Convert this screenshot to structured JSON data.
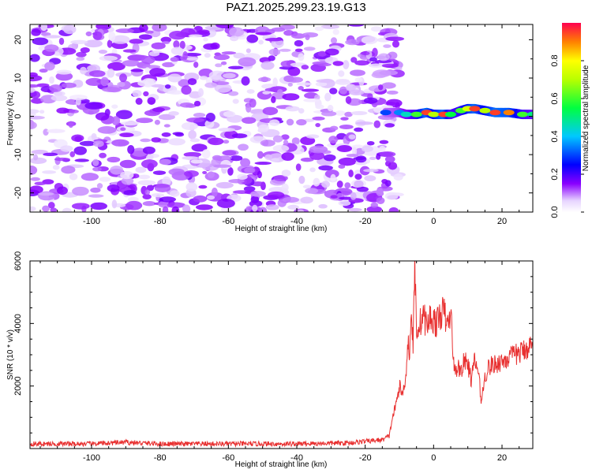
{
  "title": "PAZ1.2025.299.23.19.G13",
  "colors": {
    "snr_line": "#e83030",
    "spec_blob_dark": "#7a00ff",
    "spec_blob_light": "#d8b8ff"
  },
  "chart_data": [
    {
      "type": "heatmap",
      "name": "spectrogram",
      "xlabel": "Height of straight line (km)",
      "ylabel": "Frequency (Hz)",
      "xlim": [
        -118,
        29
      ],
      "ylim": [
        -25,
        24
      ],
      "xticks": [
        -100,
        -80,
        -60,
        -40,
        -20,
        0,
        20
      ],
      "yticks": [
        -20,
        -10,
        0,
        10,
        20
      ],
      "xtick_labels": [
        "-100",
        "-80",
        "-60",
        "-40",
        "-20",
        "0",
        "20"
      ],
      "ytick_labels": [
        "-20",
        "-10",
        "0",
        "10",
        "20"
      ],
      "colorbar": {
        "label": "Normalized spectral amplitude",
        "range": [
          0,
          1
        ],
        "ticks": [
          0.0,
          0.2,
          0.4,
          0.6,
          0.8
        ],
        "tick_labels": [
          "0.0",
          "0.2",
          "0.4",
          "0.6",
          "0.8"
        ]
      },
      "noise_region_x": [
        -118,
        -10
      ],
      "signal_trace": {
        "x": [
          -14,
          -10,
          -8,
          -5,
          -2,
          0,
          3,
          5,
          8,
          10,
          12,
          15,
          18,
          22,
          26,
          29
        ],
        "frequency": [
          1,
          1,
          0.5,
          0.5,
          1,
          0.5,
          0.5,
          0.5,
          1.5,
          2,
          2,
          1.5,
          1,
          1,
          0.5,
          0.5
        ],
        "amplitude": [
          0.3,
          0.35,
          0.45,
          0.6,
          0.95,
          0.7,
          0.95,
          0.55,
          0.6,
          0.75,
          0.95,
          0.7,
          0.95,
          0.9,
          0.6,
          0.5
        ]
      }
    },
    {
      "type": "line",
      "name": "snr",
      "xlabel": "Height of straight line (km)",
      "ylabel": "SNR (10 * v/v)",
      "xlim": [
        -118,
        29
      ],
      "ylim": [
        0,
        6000
      ],
      "xticks": [
        -100,
        -80,
        -60,
        -40,
        -20,
        0,
        20
      ],
      "yticks": [
        2000,
        4000,
        6000
      ],
      "xtick_labels": [
        "-100",
        "-80",
        "-60",
        "-40",
        "-20",
        "0",
        "20"
      ],
      "ytick_labels": [
        "2000",
        "4000",
        "6000"
      ],
      "series": [
        {
          "name": "SNR",
          "x": [
            -118,
            -100,
            -90,
            -80,
            -60,
            -40,
            -25,
            -18,
            -15,
            -13,
            -12,
            -11,
            -10,
            -9,
            -8,
            -7.5,
            -7,
            -6.5,
            -6,
            -5.5,
            -5,
            -4,
            -3,
            -2,
            -1,
            0,
            1,
            2,
            3,
            4,
            5,
            5.5,
            6,
            7,
            8,
            9,
            10,
            11,
            12,
            13,
            14,
            15,
            16,
            18,
            20,
            22,
            24,
            26,
            28,
            29
          ],
          "values": [
            150,
            150,
            200,
            150,
            150,
            150,
            180,
            250,
            280,
            400,
            1000,
            1400,
            2000,
            1700,
            2500,
            3500,
            3000,
            4500,
            3200,
            6000,
            3800,
            4000,
            4300,
            3900,
            4200,
            4100,
            4000,
            4300,
            4400,
            3900,
            4300,
            3600,
            2400,
            2600,
            2500,
            2800,
            2700,
            2200,
            2800,
            2500,
            1500,
            2300,
            2600,
            2700,
            2800,
            2900,
            3000,
            3100,
            3300,
            3200
          ]
        }
      ]
    }
  ]
}
